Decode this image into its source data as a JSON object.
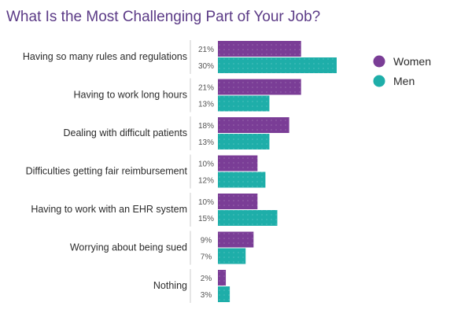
{
  "chart_data": {
    "type": "bar",
    "orientation": "horizontal",
    "title": "What Is the Most Challenging Part of Your Job?",
    "categories": [
      "Having so many rules and regulations",
      "Having to work long hours",
      "Dealing with difficult patients",
      "Difficulties getting fair reimbursement",
      "Having to work with an EHR system",
      "Worrying about being sued",
      "Nothing"
    ],
    "series": [
      {
        "name": "Women",
        "values": [
          21,
          21,
          18,
          10,
          10,
          9,
          2
        ],
        "color": "#7a3d96"
      },
      {
        "name": "Men",
        "values": [
          30,
          13,
          13,
          12,
          15,
          7,
          3
        ],
        "color": "#1eaea9"
      }
    ],
    "value_suffix": "%",
    "legend_position": "right",
    "grid": false,
    "xlim": [
      0,
      30
    ]
  }
}
